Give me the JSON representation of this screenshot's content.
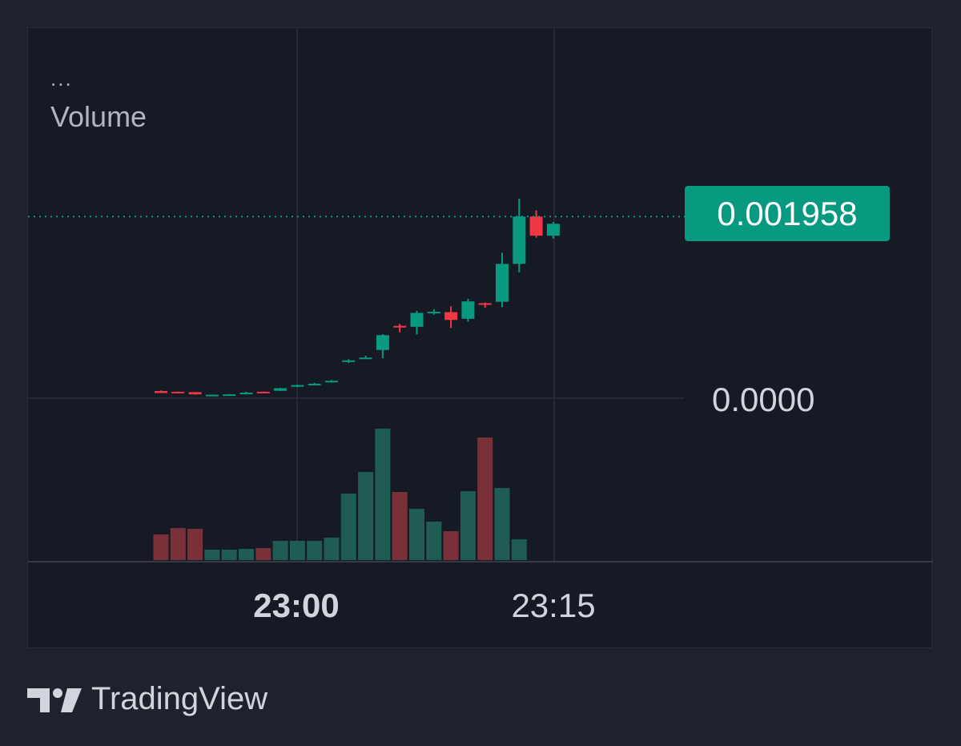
{
  "legend": {
    "dots": "...",
    "volume_label": "Volume"
  },
  "price_tag": {
    "value": "0.001958",
    "color": "#089981"
  },
  "price_axis": {
    "label": "0.0000"
  },
  "time_axis": [
    {
      "label": "23:00",
      "bold": true
    },
    {
      "label": "23:15",
      "bold": false
    }
  ],
  "footer": {
    "logo_icon": "tradingview-logo-icon",
    "brand": "TradingView"
  },
  "colors": {
    "up": "#089981",
    "down": "#f23645",
    "volume_up": "#1f5c54",
    "volume_down": "#7a3039",
    "grid": "#2a2e39",
    "background": "#161a25"
  },
  "chart_data": {
    "type": "candlestick",
    "title": "",
    "xlabel": "",
    "ylabel": "",
    "x_ticks": [
      "23:00",
      "23:15"
    ],
    "y_ticks": [
      "0.0000"
    ],
    "last_price": 0.001958,
    "series": [
      {
        "kind": "ohlc",
        "values": [
          [
            7.8e-05,
            8.4e-05,
            7e-05,
            5.6e-05
          ],
          [
            7e-05,
            7.2e-05,
            6.8e-05,
            6.2e-05
          ],
          [
            6.6e-05,
            6.6e-05,
            3.8e-05,
            4.2e-05
          ],
          [
            3.2e-05,
            4e-05,
            2.8e-05,
            3.8e-05
          ],
          [
            4e-05,
            4.6e-05,
            3.4e-05,
            4.2e-05
          ],
          [
            5e-05,
            7e-05,
            4.4e-05,
            6e-05
          ],
          [
            7e-05,
            7.2e-05,
            6.2e-05,
            6e-05
          ],
          [
            8e-05,
            0.000112,
            7.6e-05,
            0.000108
          ],
          [
            0.000124,
            0.000148,
            0.00012,
            0.000142
          ],
          [
            0.000146,
            0.000166,
            0.000144,
            0.000156
          ],
          [
            0.000176,
            0.000196,
            0.00017,
            0.000188
          ],
          [
            0.000392,
            0.00042,
            0.00038,
            0.000408
          ],
          [
            0.00043,
            0.000458,
            0.000424,
            0.000438
          ],
          [
            0.00052,
            0.00069,
            0.00043,
            0.00068
          ],
          [
            0.00078,
            0.0008,
            0.00071,
            0.000762
          ],
          [
            0.00077,
            0.000942,
            0.000688,
            0.00092
          ],
          [
            0.00092,
            0.00096,
            0.0009,
            0.000932
          ],
          [
            0.000928,
            0.00099,
            0.000758,
            0.000844
          ],
          [
            0.000856,
            0.001072,
            0.000826,
            0.001044
          ],
          [
            0.001024,
            0.001032,
            0.000976,
            0.001016
          ],
          [
            0.00104,
            0.001568,
            0.000982,
            0.001448
          ],
          [
            0.001448,
            0.00215,
            0.001358,
            0.001958
          ],
          [
            0.001958,
            0.002024,
            0.00173,
            0.001752
          ],
          [
            0.001752,
            0.0019,
            0.00172,
            0.00188
          ]
        ]
      },
      {
        "kind": "volume",
        "values": [
          32,
          40,
          39,
          13,
          13,
          14,
          15,
          24,
          24,
          24,
          28,
          83,
          110,
          164,
          85,
          64,
          48,
          36,
          86,
          153,
          90,
          26,
          0,
          0
        ]
      }
    ]
  }
}
